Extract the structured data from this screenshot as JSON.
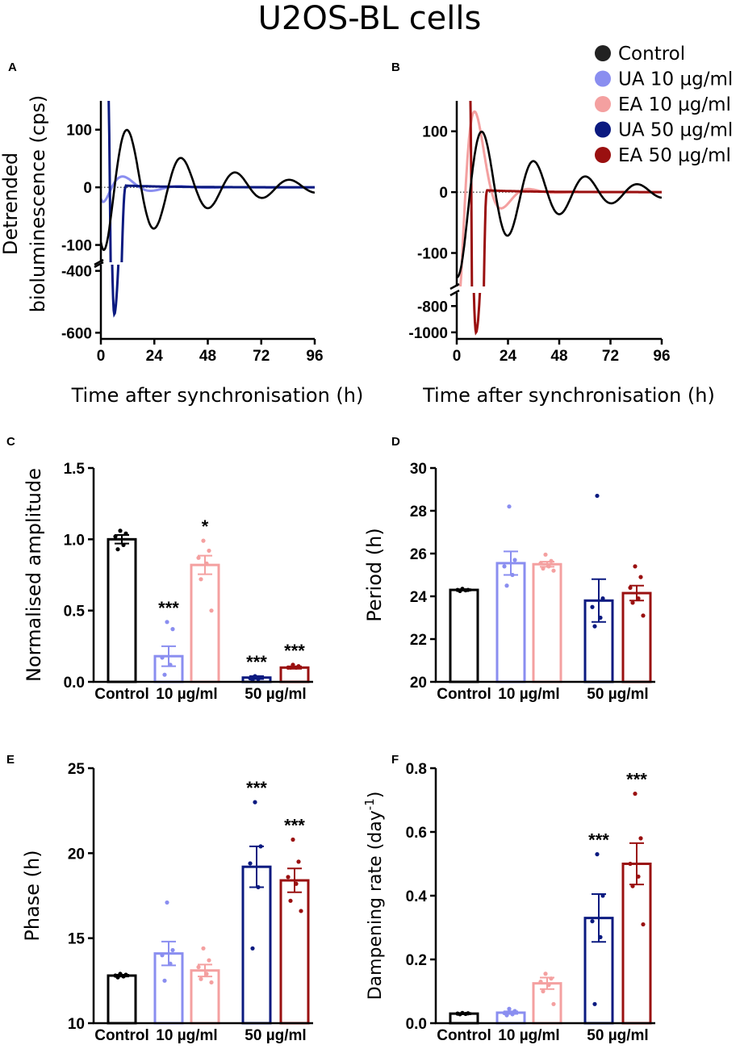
{
  "title": "U2OS-BL cells",
  "colors": {
    "control": "#000000",
    "ua10": "#8a8ef0",
    "ea10": "#f4a0a0",
    "ua50": "#0b1a80",
    "ea50": "#9a1010"
  },
  "legend": [
    {
      "label": "Control",
      "color": "#222222"
    },
    {
      "label": "UA 10 µg/ml",
      "color": "#8a8ef0"
    },
    {
      "label": "EA 10 µg/ml",
      "color": "#f4a0a0"
    },
    {
      "label": "UA 50 µg/ml",
      "color": "#0b1a80"
    },
    {
      "label": "EA 50 µg/ml",
      "color": "#9a1010"
    }
  ],
  "chart_data": [
    {
      "panel": "A",
      "type": "line",
      "ylabel": "Detrended bioluminescence (cps)",
      "xlabel": "Time after synchronisation (h)",
      "x_ticks": [
        "0",
        "24",
        "48",
        "72",
        "96"
      ],
      "xlim": [
        0,
        96
      ],
      "y_ticks_upper": [
        "100",
        "0",
        "-100"
      ],
      "y_upper_range": [
        -130,
        150
      ],
      "y_ticks_lower": [
        "-400",
        "-600"
      ],
      "y_lower_range": [
        -620,
        -380
      ],
      "series": [
        {
          "name": "Control",
          "shape": "damped",
          "start": -95,
          "amp": 100,
          "period": 24.3,
          "peak": 12,
          "decay": 0.028
        },
        {
          "name": "UA 10 µg/ml",
          "shape": "damped",
          "start": -20,
          "amp": 18,
          "period": 25.6,
          "peak": 11,
          "decay": 0.09
        },
        {
          "name": "UA 50 µg/ml",
          "shape": "spike",
          "top": 200,
          "top_t": 3,
          "min": -540,
          "min_t": 6,
          "settle_t": 11
        }
      ]
    },
    {
      "panel": "B",
      "type": "line",
      "xlabel": "Time after synchronisation (h)",
      "x_ticks": [
        "0",
        "24",
        "48",
        "72",
        "96"
      ],
      "xlim": [
        0,
        96
      ],
      "y_ticks_upper": [
        "100",
        "0",
        "-100"
      ],
      "y_upper_range": [
        -155,
        150
      ],
      "y_ticks_lower": [
        "-800",
        "-1000"
      ],
      "y_lower_range": [
        -1050,
        -700
      ],
      "series": [
        {
          "name": "Control",
          "shape": "damped",
          "start": -140,
          "amp": 100,
          "period": 24.3,
          "peak": 12,
          "decay": 0.028
        },
        {
          "name": "EA 10 µg/ml",
          "shape": "damped",
          "start": -150,
          "amp": 122,
          "period": 25.5,
          "peak": 10,
          "decay": 0.13
        },
        {
          "name": "EA 50 µg/ml",
          "shape": "spike",
          "top": 210,
          "top_t": 6,
          "min": -1000,
          "min_t": 9,
          "settle_t": 14
        }
      ]
    },
    {
      "panel": "C",
      "type": "bar",
      "ylabel": "Normalised amplitude",
      "ylim": [
        0,
        1.5
      ],
      "y_ticks": [
        0.0,
        0.5,
        1.0,
        1.5
      ],
      "y_tick_labels": [
        "0.0",
        "0.5",
        "1.0",
        "1.5"
      ],
      "groups": [
        "Control",
        "10 µg/ml",
        "50 µg/ml"
      ],
      "bars": [
        {
          "name": "Control",
          "mean": 1.0,
          "sem": 0.03,
          "points": [
            1.06,
            1.04,
            1.02,
            0.96,
            0.93
          ],
          "sig": ""
        },
        {
          "name": "UA 10 µg/ml",
          "mean": 0.18,
          "sem": 0.07,
          "points": [
            0.42,
            0.37,
            0.17,
            0.12,
            0.05
          ],
          "sig": "***"
        },
        {
          "name": "EA 10 µg/ml",
          "mean": 0.82,
          "sem": 0.065,
          "points": [
            0.99,
            0.92,
            0.87,
            0.83,
            0.72,
            0.5
          ],
          "sig": "*"
        },
        {
          "name": "UA 50 µg/ml",
          "mean": 0.03,
          "sem": 0.01,
          "points": [
            0.04,
            0.03,
            0.025,
            0.02,
            0.015
          ],
          "sig": "***"
        },
        {
          "name": "EA 50 µg/ml",
          "mean": 0.1,
          "sem": 0.008,
          "points": [
            0.12,
            0.11,
            0.1,
            0.1,
            0.1
          ],
          "sig": "***"
        }
      ]
    },
    {
      "panel": "D",
      "type": "bar",
      "ylabel": "Period (h)",
      "ylim": [
        20,
        30
      ],
      "y_ticks": [
        20,
        22,
        24,
        26,
        28,
        30
      ],
      "y_tick_labels": [
        "20",
        "22",
        "24",
        "26",
        "28",
        "30"
      ],
      "groups": [
        "Control",
        "10 µg/ml",
        "50 µg/ml"
      ],
      "bars": [
        {
          "name": "Control",
          "mean": 24.3,
          "sem": 0.03,
          "points": [
            24.35,
            24.3,
            24.3,
            24.28,
            24.25
          ],
          "sig": ""
        },
        {
          "name": "UA 10 µg/ml",
          "mean": 25.55,
          "sem": 0.55,
          "points": [
            28.2,
            25.7,
            25.4,
            25.0,
            24.5
          ],
          "sig": ""
        },
        {
          "name": "EA 10 µg/ml",
          "mean": 25.5,
          "sem": 0.12,
          "points": [
            25.95,
            25.65,
            25.55,
            25.4,
            25.3,
            25.2
          ],
          "sig": ""
        },
        {
          "name": "UA 50 µg/ml",
          "mean": 23.8,
          "sem": 1.0,
          "points": [
            28.7,
            23.9,
            23.5,
            23.0,
            22.6
          ],
          "sig": ""
        },
        {
          "name": "EA 50 µg/ml",
          "mean": 24.15,
          "sem": 0.35,
          "points": [
            25.4,
            24.9,
            24.4,
            23.9,
            23.7,
            23.1
          ],
          "sig": ""
        }
      ]
    },
    {
      "panel": "E",
      "type": "bar",
      "ylabel": "Phase (h)",
      "ylim": [
        10,
        25
      ],
      "y_ticks": [
        10,
        15,
        20,
        25
      ],
      "y_tick_labels": [
        "10",
        "15",
        "20",
        "25"
      ],
      "groups": [
        "Control",
        "10 µg/ml",
        "50 µg/ml"
      ],
      "bars": [
        {
          "name": "Control",
          "mean": 12.8,
          "sem": 0.05,
          "points": [
            12.9,
            12.85,
            12.8,
            12.75,
            12.7
          ],
          "sig": ""
        },
        {
          "name": "UA 10 µg/ml",
          "mean": 14.1,
          "sem": 0.7,
          "points": [
            17.1,
            14.3,
            14.0,
            13.5,
            12.5
          ],
          "sig": ""
        },
        {
          "name": "EA 10 µg/ml",
          "mean": 13.1,
          "sem": 0.35,
          "points": [
            14.4,
            13.7,
            13.3,
            12.9,
            12.6,
            12.4
          ],
          "sig": ""
        },
        {
          "name": "UA 50 µg/ml",
          "mean": 19.2,
          "sem": 1.2,
          "points": [
            23.0,
            20.4,
            19.4,
            18.0,
            14.4
          ],
          "sig": "***"
        },
        {
          "name": "EA 50 µg/ml",
          "mean": 18.4,
          "sem": 0.7,
          "points": [
            20.8,
            19.5,
            18.6,
            18.2,
            17.2,
            16.6
          ],
          "sig": "***"
        }
      ]
    },
    {
      "panel": "F",
      "type": "bar",
      "ylabel": "Dampening rate (day",
      "ylabel_sup": "-1",
      "ylabel_end": ")",
      "ylim": [
        0,
        0.8
      ],
      "y_ticks": [
        0.0,
        0.2,
        0.4,
        0.6,
        0.8
      ],
      "y_tick_labels": [
        "0.0",
        "0.2",
        "0.4",
        "0.6",
        "0.8"
      ],
      "groups": [
        "Control",
        "10 µg/ml",
        "50 µg/ml"
      ],
      "bars": [
        {
          "name": "Control",
          "mean": 0.03,
          "sem": 0.002,
          "points": [
            0.032,
            0.031,
            0.03,
            0.029,
            0.028
          ],
          "sig": ""
        },
        {
          "name": "UA 10 µg/ml",
          "mean": 0.033,
          "sem": 0.004,
          "points": [
            0.045,
            0.038,
            0.032,
            0.028,
            0.025
          ],
          "sig": ""
        },
        {
          "name": "EA 10 µg/ml",
          "mean": 0.125,
          "sem": 0.018,
          "points": [
            0.155,
            0.14,
            0.13,
            0.12,
            0.1,
            0.06
          ],
          "sig": ""
        },
        {
          "name": "UA 50 µg/ml",
          "mean": 0.33,
          "sem": 0.075,
          "points": [
            0.53,
            0.4,
            0.32,
            0.27,
            0.06
          ],
          "sig": "***"
        },
        {
          "name": "EA 50 µg/ml",
          "mean": 0.5,
          "sem": 0.065,
          "points": [
            0.72,
            0.58,
            0.5,
            0.46,
            0.43,
            0.31
          ],
          "sig": "***"
        }
      ]
    }
  ]
}
